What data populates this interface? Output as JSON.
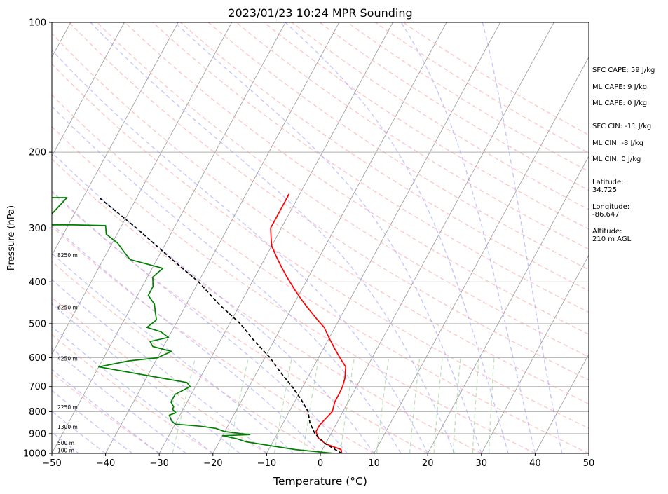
{
  "chart_data": {
    "type": "skew-t log-p sounding",
    "title": "2023/01/23 10:24 MPR Sounding",
    "xlabel": "Temperature (°C)",
    "ylabel": "Pressure (hPa)",
    "xlim": [
      -50,
      50
    ],
    "ylim": [
      1000,
      100
    ],
    "y_scale": "log",
    "x_ticks": [
      "−50",
      "−40",
      "−30",
      "−20",
      "−10",
      "0",
      "10",
      "20",
      "30",
      "40",
      "50"
    ],
    "y_ticks": [
      "100",
      "200",
      "300",
      "400",
      "500",
      "600",
      "700",
      "800",
      "900",
      "1000"
    ],
    "grid": "horizontal isobars",
    "colors": {
      "temperature": "#ff0000",
      "dewpoint": "#008000",
      "parcel": "#000000",
      "dry_adiabats": "#ff9999",
      "moist_adiabats": "#9999ff",
      "mixing_ratio": "#88cc88",
      "isotherms": "#999999"
    },
    "series": [
      {
        "key": "temperature",
        "style": "solid",
        "points": [
          [
            4,
            1000
          ],
          [
            3.5,
            980
          ],
          [
            0,
            950
          ],
          [
            -2,
            920
          ],
          [
            -3,
            890
          ],
          [
            -3,
            860
          ],
          [
            -2.5,
            830
          ],
          [
            -2,
            800
          ],
          [
            -2.5,
            760
          ],
          [
            -2.5,
            730
          ],
          [
            -2.6,
            700
          ],
          [
            -3,
            670
          ],
          [
            -4,
            630
          ],
          [
            -6,
            600
          ],
          [
            -8,
            570
          ],
          [
            -10,
            540
          ],
          [
            -12,
            510
          ],
          [
            -14,
            490
          ],
          [
            -17,
            460
          ],
          [
            -19,
            440
          ],
          [
            -21,
            420
          ],
          [
            -24,
            390
          ],
          [
            -26,
            370
          ],
          [
            -28,
            350
          ],
          [
            -30,
            330
          ],
          [
            -31,
            315
          ],
          [
            -32,
            300
          ],
          [
            -32,
            290
          ],
          [
            -32,
            280
          ],
          [
            -32,
            260
          ],
          [
            -32,
            250
          ]
        ]
      },
      {
        "key": "dewpoint",
        "style": "solid",
        "points": [
          [
            2.5,
            1000
          ],
          [
            -5,
            980
          ],
          [
            -10,
            960
          ],
          [
            -15,
            940
          ],
          [
            -17,
            925
          ],
          [
            -20,
            910
          ],
          [
            -15,
            905
          ],
          [
            -20,
            890
          ],
          [
            -22,
            875
          ],
          [
            -25,
            865
          ],
          [
            -30,
            855
          ],
          [
            -31,
            840
          ],
          [
            -32,
            815
          ],
          [
            -31,
            805
          ],
          [
            -32,
            790
          ],
          [
            -32,
            780
          ],
          [
            -33,
            760
          ],
          [
            -33,
            745
          ],
          [
            -33,
            730
          ],
          [
            -32,
            715
          ],
          [
            -31,
            700
          ],
          [
            -32,
            685
          ],
          [
            -40,
            660
          ],
          [
            -50,
            630
          ],
          [
            -45,
            610
          ],
          [
            -40,
            600
          ],
          [
            -38,
            580
          ],
          [
            -42,
            565
          ],
          [
            -43,
            550
          ],
          [
            -40,
            538
          ],
          [
            -42,
            522
          ],
          [
            -45,
            510
          ],
          [
            -44,
            490
          ],
          [
            -45,
            470
          ],
          [
            -46,
            450
          ],
          [
            -48,
            430
          ],
          [
            -48,
            410
          ],
          [
            -49,
            390
          ],
          [
            -48,
            372
          ],
          [
            -55,
            355
          ],
          [
            -57,
            340
          ],
          [
            -59,
            325
          ],
          [
            -62,
            310
          ],
          [
            -63,
            296
          ],
          [
            -69,
            295
          ],
          [
            -75,
            295
          ],
          [
            -73,
            255
          ],
          [
            -79,
            255
          ]
        ]
      },
      {
        "key": "parcel",
        "style": "dashed",
        "points": [
          [
            4,
            1000
          ],
          [
            0,
            950
          ],
          [
            -3,
            900
          ],
          [
            -5,
            850
          ],
          [
            -6.5,
            800
          ],
          [
            -9,
            750
          ],
          [
            -12,
            700
          ],
          [
            -15.5,
            650
          ],
          [
            -19,
            600
          ],
          [
            -23.5,
            550
          ],
          [
            -28,
            500
          ],
          [
            -34,
            450
          ],
          [
            -40,
            400
          ],
          [
            -48,
            350
          ],
          [
            -57,
            300
          ],
          [
            -67,
            255
          ]
        ]
      }
    ],
    "height_labels": [
      {
        "text": "8250 m",
        "p": 347
      },
      {
        "text": "6250 m",
        "p": 459
      },
      {
        "text": "4250 m",
        "p": 603
      },
      {
        "text": "2250 m",
        "p": 782
      },
      {
        "text": "1300 m",
        "p": 869
      },
      {
        "text": "500 m",
        "p": 947
      },
      {
        "text": "100 m",
        "p": 986
      }
    ],
    "annotations": [
      "SFC CAPE: 59 J/kg",
      "ML CAPE: 9 J/kg",
      "ML CAPE: 0 J/kg",
      "SFC CIN: -11 J/kg",
      "ML CIN: -8 J/kg",
      "ML CIN: 0 J/kg",
      "Latitude:",
      "34.725",
      "Longitude:",
      "-86.647",
      "Altitude:",
      "210 m AGL"
    ]
  }
}
